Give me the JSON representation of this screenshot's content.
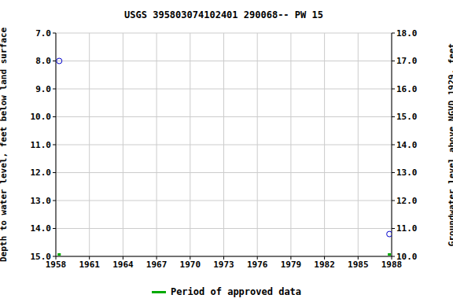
{
  "chart_data": {
    "type": "scatter",
    "title": "USGS 395803074102401 290068-- PW 15",
    "x_label": "",
    "y_label": "Depth to water level, feet below land surface",
    "y2_label": "Groundwater level above NGVD 1929, feet",
    "x": [
      1958.3,
      1987.8
    ],
    "values": [
      8.0,
      14.2
    ],
    "color": "#0000cc",
    "marker": "circle",
    "xlim": [
      1958,
      1988
    ],
    "xticks": [
      1958,
      1961,
      1964,
      1967,
      1970,
      1973,
      1976,
      1979,
      1982,
      1985,
      1988
    ],
    "ylim": [
      15,
      7
    ],
    "yticks": [
      {
        "value": 7,
        "label": "7.0"
      },
      {
        "value": 8,
        "label": "8.0"
      },
      {
        "value": 9,
        "label": "9.0"
      },
      {
        "value": 10,
        "label": "10.0"
      },
      {
        "value": 11,
        "label": "11.0"
      },
      {
        "value": 12,
        "label": "12.0"
      },
      {
        "value": 13,
        "label": "13.0"
      },
      {
        "value": 14,
        "label": "14.0"
      },
      {
        "value": 15,
        "label": "15.0"
      }
    ],
    "y2lim": [
      10,
      18
    ],
    "y2ticks": [
      {
        "value": 10,
        "label": "10.0"
      },
      {
        "value": 11,
        "label": "11.0"
      },
      {
        "value": 12,
        "label": "12.0"
      },
      {
        "value": 13,
        "label": "13.0"
      },
      {
        "value": 14,
        "label": "14.0"
      },
      {
        "value": 15,
        "label": "15.0"
      },
      {
        "value": 16,
        "label": "16.0"
      },
      {
        "value": 17,
        "label": "17.0"
      },
      {
        "value": 18,
        "label": "18.0"
      }
    ],
    "grid": true,
    "approved_periods": {
      "name": "Period of approved data",
      "color": "#00aa00",
      "x": [
        1958.3,
        1987.8
      ]
    }
  }
}
